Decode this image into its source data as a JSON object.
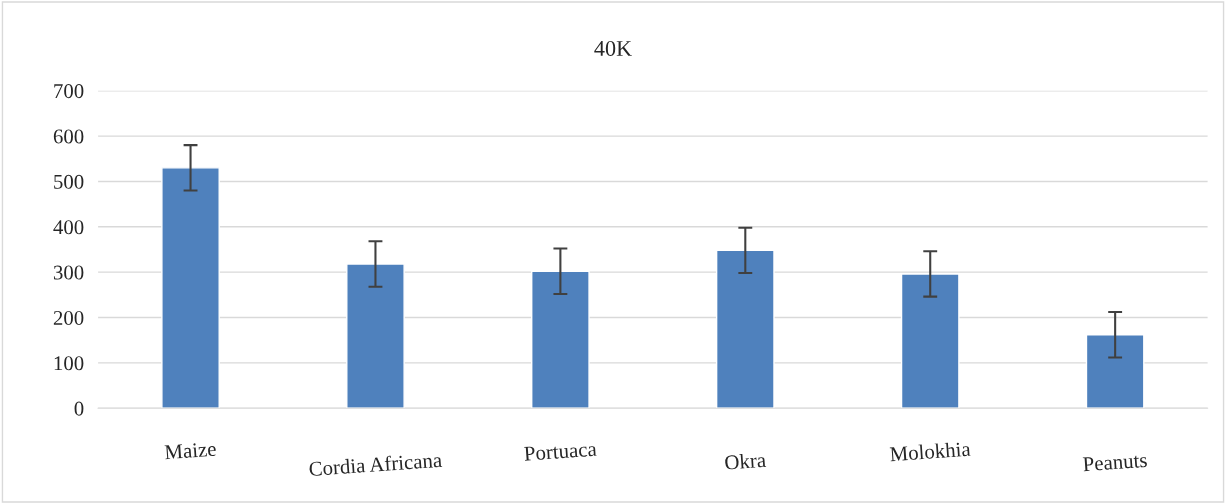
{
  "chart_data": {
    "type": "bar",
    "title": "40K",
    "categories": [
      "Maize",
      "Cordia Africana",
      "Portuaca",
      "Okra",
      "Molokhia",
      "Peanuts"
    ],
    "values": [
      530,
      318,
      302,
      348,
      296,
      162
    ],
    "errors": [
      50,
      50,
      50,
      50,
      50,
      50
    ],
    "color": "#4f81bd",
    "ylim": [
      0,
      700
    ],
    "yticks": [
      0,
      100,
      200,
      300,
      400,
      500,
      600,
      700
    ],
    "grid": "y",
    "legend": false
  }
}
